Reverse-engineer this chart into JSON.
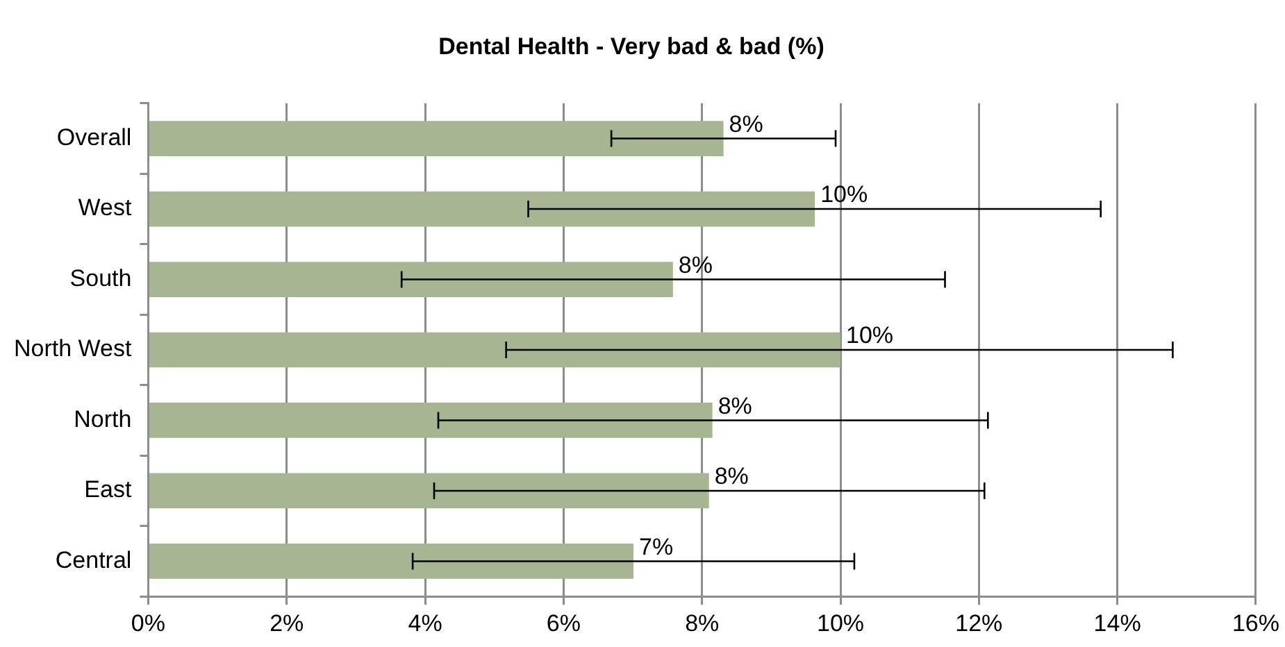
{
  "chart_data": {
    "type": "bar",
    "orientation": "horizontal",
    "title": "Dental Health - Very bad & bad (%)",
    "categories": [
      "Overall",
      "West",
      "South",
      "North West",
      "North",
      "East",
      "Central"
    ],
    "values": [
      8.31,
      9.63,
      7.58,
      10.0,
      8.15,
      8.1,
      7.01
    ],
    "errors": [
      [
        6.69,
        9.93
      ],
      [
        5.49,
        13.76
      ],
      [
        3.66,
        11.51
      ],
      [
        5.17,
        14.8
      ],
      [
        4.19,
        12.13
      ],
      [
        4.13,
        12.08
      ],
      [
        3.82,
        10.2
      ]
    ],
    "value_labels": [
      "8%",
      "10%",
      "8%",
      "10%",
      "8%",
      "8%",
      "7%"
    ],
    "color": "#a6b592",
    "xlim": [
      0,
      16
    ],
    "xticks": [
      {
        "value": 0,
        "label": "0%"
      },
      {
        "value": 2,
        "label": "2%"
      },
      {
        "value": 4,
        "label": "4%"
      },
      {
        "value": 6,
        "label": "6%"
      },
      {
        "value": 8,
        "label": "8%"
      },
      {
        "value": 10,
        "label": "10%"
      },
      {
        "value": 12,
        "label": "12%"
      },
      {
        "value": 14,
        "label": "14%"
      },
      {
        "value": 16,
        "label": "16%"
      }
    ],
    "grid": "x",
    "legend": false
  }
}
